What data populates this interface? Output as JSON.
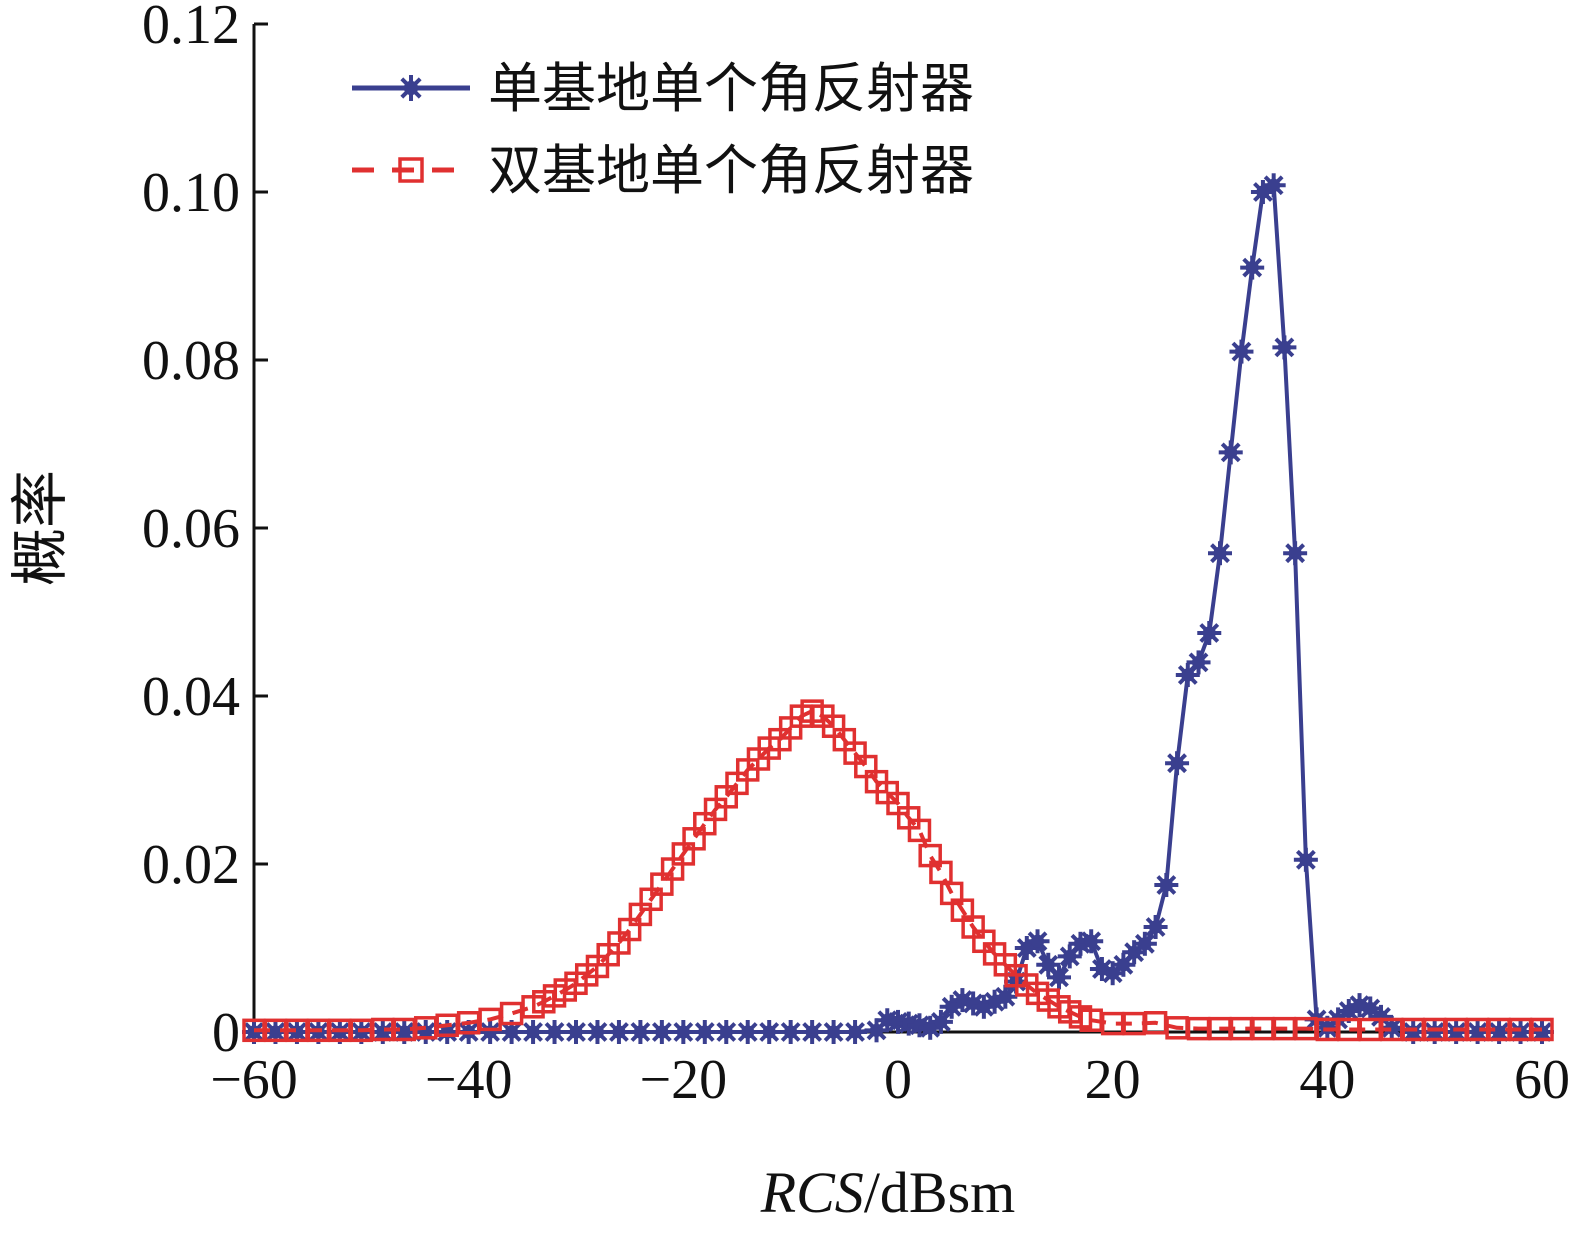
{
  "chart_data": {
    "type": "line",
    "title": "",
    "xlabel_italic": "RCS",
    "xlabel_rest": "/dBsm",
    "ylabel": "概率",
    "xlim": [
      -60,
      60
    ],
    "ylim": [
      0,
      0.12
    ],
    "xticks": [
      -60,
      -40,
      -20,
      0,
      20,
      40,
      60
    ],
    "xtick_labels": [
      "−60",
      "−40",
      "−20",
      "0",
      "20",
      "40",
      "60"
    ],
    "yticks": [
      0,
      0.02,
      0.04,
      0.06,
      0.08,
      0.1,
      0.12
    ],
    "ytick_labels": [
      "0",
      "0.02",
      "0.04",
      "0.06",
      "0.08",
      "0.10",
      "0.12"
    ],
    "grid": false,
    "legend_position": "top-left",
    "series": [
      {
        "name": "单基地单个角反射器",
        "color": "#3a3f8f",
        "line_style": "solid",
        "marker": "star",
        "x": [
          -60,
          -58,
          -56,
          -54,
          -52,
          -50,
          -48,
          -46,
          -44,
          -42,
          -40,
          -38,
          -36,
          -34,
          -32,
          -30,
          -28,
          -26,
          -24,
          -22,
          -20,
          -18,
          -16,
          -14,
          -12,
          -10,
          -8,
          -6,
          -4,
          -2,
          -1,
          0,
          1,
          2,
          3,
          4,
          5,
          6,
          7,
          8,
          9,
          10,
          11,
          12,
          13,
          14,
          15,
          16,
          17,
          18,
          19,
          20,
          21,
          22,
          23,
          24,
          25,
          26,
          27,
          28,
          29,
          30,
          31,
          32,
          33,
          34,
          35,
          36,
          37,
          38,
          39,
          40,
          41,
          42,
          43,
          44,
          45,
          46,
          48,
          50,
          52,
          54,
          56,
          58,
          60
        ],
        "y": [
          0,
          0,
          0,
          0,
          0,
          0,
          0,
          0,
          0,
          0,
          0,
          0,
          0,
          0,
          0,
          0,
          0,
          0,
          0,
          0,
          0,
          0,
          0,
          0,
          0,
          0,
          0,
          0,
          0,
          0.0002,
          0.0014,
          0.0012,
          0.001,
          0.0008,
          0.0005,
          0.0012,
          0.003,
          0.0038,
          0.0034,
          0.003,
          0.0036,
          0.0042,
          0.006,
          0.01,
          0.0108,
          0.008,
          0.0065,
          0.009,
          0.0105,
          0.0108,
          0.0075,
          0.007,
          0.008,
          0.0095,
          0.0105,
          0.0125,
          0.0175,
          0.032,
          0.0425,
          0.044,
          0.0475,
          0.057,
          0.069,
          0.081,
          0.091,
          0.1,
          0.1008,
          0.0815,
          0.057,
          0.0205,
          0.0015,
          0.0005,
          0.0015,
          0.0025,
          0.0032,
          0.0028,
          0.0018,
          0.0005,
          0,
          0,
          0,
          0,
          0,
          0,
          0
        ]
      },
      {
        "name": "双基地单个角反射器",
        "color": "#e03030",
        "line_style": "dashed",
        "marker": "square",
        "x": [
          -60,
          -58,
          -56,
          -54,
          -52,
          -50,
          -48,
          -46,
          -44,
          -42,
          -40,
          -38,
          -36,
          -34,
          -33,
          -32,
          -31,
          -30,
          -29,
          -28,
          -27,
          -26,
          -25,
          -24,
          -23,
          -22,
          -21,
          -20,
          -19,
          -18,
          -17,
          -16,
          -15,
          -14,
          -13,
          -12,
          -11,
          -10,
          -9,
          -8,
          -7,
          -6,
          -5,
          -4,
          -3,
          -2,
          -1,
          0,
          1,
          2,
          3,
          4,
          5,
          6,
          7,
          8,
          9,
          10,
          11,
          12,
          13,
          14,
          15,
          16,
          17,
          18,
          20,
          22,
          24,
          26,
          28,
          30,
          32,
          34,
          36,
          38,
          40,
          42,
          44,
          46,
          48,
          50,
          52,
          54,
          56,
          58,
          60
        ],
        "y": [
          0.0002,
          0.0002,
          0.0002,
          0.0002,
          0.0002,
          0.0002,
          0.0003,
          0.0003,
          0.0005,
          0.0008,
          0.0011,
          0.0015,
          0.0022,
          0.003,
          0.0036,
          0.0043,
          0.005,
          0.0058,
          0.0068,
          0.0078,
          0.0092,
          0.0106,
          0.0122,
          0.014,
          0.0158,
          0.0176,
          0.0194,
          0.0212,
          0.023,
          0.0248,
          0.0265,
          0.028,
          0.0296,
          0.0312,
          0.0325,
          0.0338,
          0.0348,
          0.0362,
          0.0376,
          0.0382,
          0.0376,
          0.0364,
          0.0348,
          0.0332,
          0.0316,
          0.0298,
          0.0285,
          0.0272,
          0.0255,
          0.024,
          0.021,
          0.019,
          0.0165,
          0.0145,
          0.0125,
          0.0108,
          0.0093,
          0.008,
          0.0067,
          0.0056,
          0.0046,
          0.0038,
          0.003,
          0.0024,
          0.0018,
          0.0014,
          0.001,
          0.001,
          0.0011,
          0.0005,
          0.0004,
          0.0004,
          0.0004,
          0.0004,
          0.0004,
          0.0004,
          0.0003,
          0.0003,
          0.0003,
          0.0003,
          0.0003,
          0.0003,
          0.0003,
          0.0003,
          0.0003,
          0.0003,
          0.0003
        ]
      }
    ]
  }
}
